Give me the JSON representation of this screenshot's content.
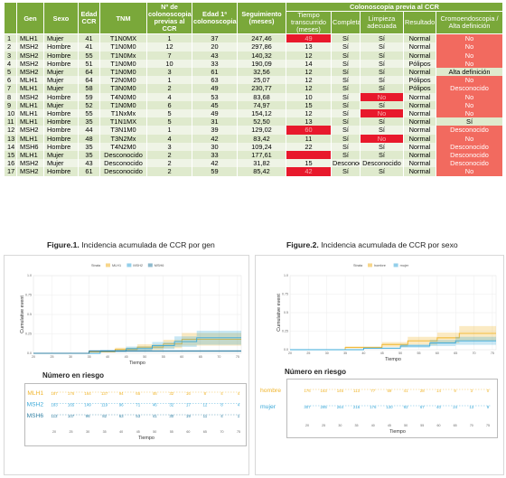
{
  "table": {
    "headers": {
      "gen": "Gen",
      "sexo": "Sexo",
      "edad_ccr": "Edad CCR",
      "tnm": "TNM",
      "n_colonoscopias": "Nº de colonoscopias previas al CCR",
      "edad_1": "Edad 1ª colonoscopia",
      "seguimiento": "Seguimiento (meses)",
      "group": "Colonoscopia previa al CCR",
      "tiempo": "Tiempo transcurrido (meses)",
      "completa": "Completa",
      "limpieza": "Limpieza adecuada",
      "resultado": "Resultado",
      "cromo": "Cromoendoscopia / Alta definición"
    },
    "rows": [
      {
        "n": "1",
        "gen": "MLH1",
        "sexo": "Mujer",
        "edad": "41",
        "tnm": "T1N0MX",
        "ncol": "1",
        "edad1": "37",
        "seg": "247,46",
        "tiempo": "49",
        "completa": "Sí",
        "limpieza": "Sí",
        "resultado": "Normal",
        "cromo": "No",
        "tiempo_flag": "red",
        "limpieza_flag": "",
        "cromo_flag": "salmon"
      },
      {
        "n": "2",
        "gen": "MSH2",
        "sexo": "Hombre",
        "edad": "41",
        "tnm": "T1N0M0",
        "ncol": "12",
        "edad1": "20",
        "seg": "297,86",
        "tiempo": "13",
        "completa": "Sí",
        "limpieza": "Sí",
        "resultado": "Normal",
        "cromo": "No",
        "tiempo_flag": "",
        "limpieza_flag": "",
        "cromo_flag": "salmon"
      },
      {
        "n": "3",
        "gen": "MSH2",
        "sexo": "Hombre",
        "edad": "55",
        "tnm": "T1N0Mx",
        "ncol": "7",
        "edad1": "43",
        "seg": "140,32",
        "tiempo": "12",
        "completa": "Sí",
        "limpieza": "Sí",
        "resultado": "Normal",
        "cromo": "No",
        "tiempo_flag": "",
        "limpieza_flag": "",
        "cromo_flag": "salmon"
      },
      {
        "n": "4",
        "gen": "MSH2",
        "sexo": "Hombre",
        "edad": "51",
        "tnm": "T1N0M0",
        "ncol": "10",
        "edad1": "33",
        "seg": "190,09",
        "tiempo": "14",
        "completa": "Sí",
        "limpieza": "Sí",
        "resultado": "Pólipos",
        "cromo": "No",
        "tiempo_flag": "",
        "limpieza_flag": "",
        "cromo_flag": "salmon"
      },
      {
        "n": "5",
        "gen": "MSH2",
        "sexo": "Mujer",
        "edad": "64",
        "tnm": "T1N0M0",
        "ncol": "3",
        "edad1": "61",
        "seg": "32,56",
        "tiempo": "12",
        "completa": "Sí",
        "limpieza": "Sí",
        "resultado": "Normal",
        "cromo": "Alta definición",
        "tiempo_flag": "",
        "limpieza_flag": "",
        "cromo_flag": ""
      },
      {
        "n": "6",
        "gen": "MLH1",
        "sexo": "Mujer",
        "edad": "64",
        "tnm": "T2N0M0",
        "ncol": "1",
        "edad1": "63",
        "seg": "25,07",
        "tiempo": "12",
        "completa": "Sí",
        "limpieza": "Sí",
        "resultado": "Pólipos",
        "cromo": "No",
        "tiempo_flag": "",
        "limpieza_flag": "",
        "cromo_flag": "salmon"
      },
      {
        "n": "7",
        "gen": "MLH1",
        "sexo": "Mujer",
        "edad": "58",
        "tnm": "T3N0M0",
        "ncol": "2",
        "edad1": "49",
        "seg": "230,77",
        "tiempo": "12",
        "completa": "Sí",
        "limpieza": "Sí",
        "resultado": "Pólipos",
        "cromo": "Desconocido",
        "tiempo_flag": "",
        "limpieza_flag": "",
        "cromo_flag": "salmon"
      },
      {
        "n": "8",
        "gen": "MSH2",
        "sexo": "Hombre",
        "edad": "59",
        "tnm": "T4N0M0",
        "ncol": "4",
        "edad1": "53",
        "seg": "83,68",
        "tiempo": "10",
        "completa": "Sí",
        "limpieza": "No",
        "resultado": "Normal",
        "cromo": "No",
        "tiempo_flag": "",
        "limpieza_flag": "red",
        "cromo_flag": "salmon"
      },
      {
        "n": "9",
        "gen": "MLH1",
        "sexo": "Mujer",
        "edad": "52",
        "tnm": "T1N0M0",
        "ncol": "6",
        "edad1": "45",
        "seg": "74,97",
        "tiempo": "15",
        "completa": "Sí",
        "limpieza": "Sí",
        "resultado": "Normal",
        "cromo": "No",
        "tiempo_flag": "",
        "limpieza_flag": "",
        "cromo_flag": "salmon"
      },
      {
        "n": "10",
        "gen": "MLH1",
        "sexo": "Hombre",
        "edad": "55",
        "tnm": "T1NxMx",
        "ncol": "5",
        "edad1": "49",
        "seg": "154,12",
        "tiempo": "12",
        "completa": "Sí",
        "limpieza": "No",
        "resultado": "Normal",
        "cromo": "No",
        "tiempo_flag": "",
        "limpieza_flag": "red",
        "cromo_flag": "salmon"
      },
      {
        "n": "11",
        "gen": "MLH1",
        "sexo": "Hombre",
        "edad": "35",
        "tnm": "T1N1MX",
        "ncol": "5",
        "edad1": "31",
        "seg": "52,50",
        "tiempo": "13",
        "completa": "Sí",
        "limpieza": "Sí",
        "resultado": "Normal",
        "cromo": "Sí",
        "tiempo_flag": "",
        "limpieza_flag": "",
        "cromo_flag": ""
      },
      {
        "n": "12",
        "gen": "MSH2",
        "sexo": "Hombre",
        "edad": "44",
        "tnm": "T3N1M0",
        "ncol": "1",
        "edad1": "39",
        "seg": "129,02",
        "tiempo": "60",
        "completa": "Sí",
        "limpieza": "Sí",
        "resultado": "Normal",
        "cromo": "Desconocido",
        "tiempo_flag": "red",
        "limpieza_flag": "",
        "cromo_flag": "salmon"
      },
      {
        "n": "13",
        "gen": "MLH1",
        "sexo": "Hombre",
        "edad": "48",
        "tnm": "T3N2Mx",
        "ncol": "4",
        "edad1": "42",
        "seg": "83,42",
        "tiempo": "11",
        "completa": "Sí",
        "limpieza": "No",
        "resultado": "Normal",
        "cromo": "No",
        "tiempo_flag": "",
        "limpieza_flag": "red",
        "cromo_flag": "salmon"
      },
      {
        "n": "14",
        "gen": "MSH6",
        "sexo": "Hombre",
        "edad": "35",
        "tnm": "T4N2M0",
        "ncol": "3",
        "edad1": "30",
        "seg": "109,24",
        "tiempo": "22",
        "completa": "Sí",
        "limpieza": "Sí",
        "resultado": "Normal",
        "cromo": "Desconocido",
        "tiempo_flag": "",
        "limpieza_flag": "",
        "cromo_flag": "salmon"
      },
      {
        "n": "15",
        "gen": "MLH1",
        "sexo": "Mujer",
        "edad": "35",
        "tnm": "Desconocido",
        "ncol": "2",
        "edad1": "33",
        "seg": "177,61",
        "tiempo": "",
        "completa": "Sí",
        "limpieza": "Sí",
        "resultado": "Normal",
        "cromo": "Desconocido",
        "tiempo_flag": "red",
        "limpieza_flag": "",
        "cromo_flag": "salmon"
      },
      {
        "n": "16",
        "gen": "MSH2",
        "sexo": "Mujer",
        "edad": "43",
        "tnm": "Desconocido",
        "ncol": "2",
        "edad1": "42",
        "seg": "31,82",
        "tiempo": "15",
        "completa": "Desconocido",
        "limpieza": "Desconocido",
        "resultado": "Normal",
        "cromo": "Desconocido",
        "tiempo_flag": "",
        "limpieza_flag": "",
        "cromo_flag": "salmon"
      },
      {
        "n": "17",
        "gen": "MSH2",
        "sexo": "Hombre",
        "edad": "61",
        "tnm": "Desconocido",
        "ncol": "2",
        "edad1": "59",
        "seg": "85,42",
        "tiempo": "42",
        "completa": "Sí",
        "limpieza": "Sí",
        "resultado": "Normal",
        "cromo": "No",
        "tiempo_flag": "red",
        "limpieza_flag": "",
        "cromo_flag": "salmon"
      }
    ]
  },
  "captions": {
    "fig1_label": "Figure.1.",
    "fig1_text": " Incidencia acumulada de CCR por gen",
    "fig2_label": "Figure.2.",
    "fig2_text": " Incidencia acumulada de CCR por sexo"
  },
  "chart_data": [
    {
      "type": "line",
      "legend_title": "Strata",
      "legend_placement": "top",
      "xlabel": "Tiempo",
      "ylabel": "Cumulative event",
      "xticks": [
        20,
        25,
        30,
        35,
        40,
        45,
        50,
        55,
        60,
        65,
        70,
        75
      ],
      "yticks": [
        "0.0",
        "0.25",
        "0.5",
        "0.75",
        "1.0"
      ],
      "xlim": [
        20,
        76
      ],
      "ylim": [
        0,
        1
      ],
      "series": [
        {
          "name": "MLH1",
          "color": "#f0b429",
          "x": [
            20,
            35,
            42,
            48,
            55,
            60,
            76
          ],
          "y": [
            0,
            0.02,
            0.05,
            0.08,
            0.12,
            0.18,
            0.18
          ]
        },
        {
          "name": "MSH2",
          "color": "#3aa8d8",
          "x": [
            20,
            38,
            45,
            52,
            58,
            64,
            76
          ],
          "y": [
            0,
            0.03,
            0.06,
            0.1,
            0.15,
            0.2,
            0.2
          ]
        },
        {
          "name": "MSH6",
          "color": "#2f7fa3",
          "x": [
            20,
            35,
            76
          ],
          "y": [
            0,
            0.03,
            0.03
          ]
        }
      ],
      "risk_table": {
        "title": "Número en riesgo",
        "xlabel": "Tiempo",
        "rows": [
          {
            "name": "MLH1",
            "color": "#f0b429",
            "values": [
              "187",
              "176",
              "164",
              "137",
              "94",
              "65",
              "46",
              "32",
              "16",
              "8",
              "4",
              "4"
            ]
          },
          {
            "name": "MSH2",
            "color": "#3aa8d8",
            "values": [
              "183",
              "165",
              "149",
              "119",
              "96",
              "71",
              "46",
              "32",
              "17",
              "12",
              "8",
              "4"
            ]
          },
          {
            "name": "MSH6",
            "color": "#2f7fa3",
            "values": [
              "113",
              "107",
              "96",
              "82",
              "63",
              "53",
              "41",
              "30",
              "19",
              "11",
              "4",
              "1"
            ]
          }
        ]
      }
    },
    {
      "type": "line",
      "legend_title": "Strata",
      "legend_placement": "top",
      "xlabel": "Tiempo",
      "ylabel": "Cumulative event",
      "xticks": [
        20,
        25,
        30,
        35,
        40,
        45,
        50,
        55,
        60,
        65,
        70,
        75
      ],
      "yticks": [
        "0.0",
        "0.25",
        "0.5",
        "0.75",
        "1.0"
      ],
      "xlim": [
        20,
        76
      ],
      "ylim": [
        0,
        1
      ],
      "series": [
        {
          "name": "hombre",
          "color": "#f0b429",
          "x": [
            20,
            35,
            45,
            52,
            60,
            66,
            76
          ],
          "y": [
            0,
            0.03,
            0.07,
            0.12,
            0.16,
            0.22,
            0.22
          ]
        },
        {
          "name": "mujer",
          "color": "#3aa8d8",
          "x": [
            20,
            40,
            50,
            58,
            65,
            76
          ],
          "y": [
            0,
            0.02,
            0.05,
            0.09,
            0.12,
            0.12
          ]
        }
      ],
      "risk_table": {
        "title": "Número en riesgo",
        "xlabel": "Tiempo",
        "rows": [
          {
            "name": "hombre",
            "color": "#f0b429",
            "values": [
              "176",
              "163",
              "145",
              "113",
              "77",
              "59",
              "41",
              "28",
              "14",
              "9",
              "3",
              "0"
            ]
          },
          {
            "name": "mujer",
            "color": "#3aa8d8",
            "values": [
              "307",
              "285",
              "264",
              "216",
              "176",
              "130",
              "92",
              "67",
              "40",
              "24",
              "13",
              "9"
            ]
          }
        ]
      }
    }
  ]
}
